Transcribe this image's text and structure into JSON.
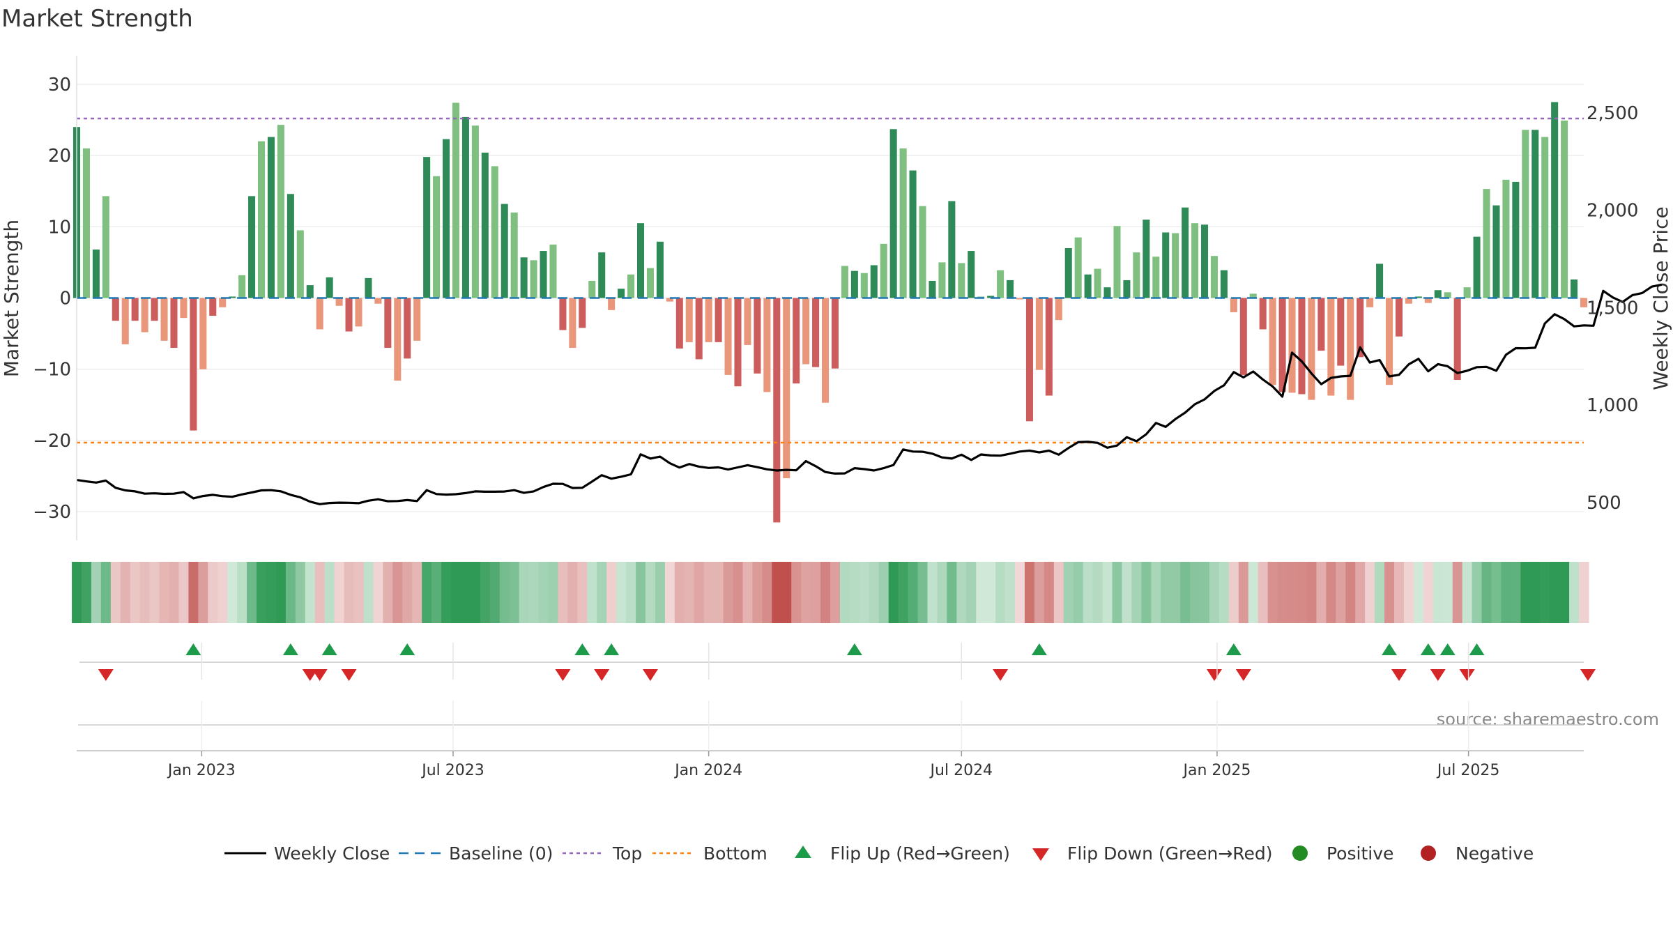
{
  "chart_data": {
    "type": "bar",
    "title": "Market Strength",
    "ylabel_left": "Market Strength",
    "ylabel_right": "Weekly Close Price",
    "source": "source: sharemaestro.com",
    "left_axis": {
      "range": [
        -34,
        34
      ],
      "ticks": [
        30,
        20,
        10,
        0,
        -10,
        -20,
        -30
      ],
      "tick_labels": [
        "30",
        "20",
        "10",
        "0",
        "−10",
        "−20",
        "−30"
      ]
    },
    "right_axis": {
      "range": [
        306,
        2793
      ],
      "ticks": [
        2500,
        2000,
        1500,
        1000,
        500
      ],
      "tick_labels": [
        "2,500",
        "2,000",
        "1,500",
        "1,000",
        "500"
      ]
    },
    "x_axis": {
      "start": "2022-10-03",
      "end": "2025-09-22",
      "ticks": [
        "2023-01-01",
        "2023-07-01",
        "2024-01-01",
        "2024-07-01",
        "2025-01-01",
        "2025-07-01"
      ],
      "tick_labels": [
        "Jan 2023",
        "Jul 2023",
        "Jan 2024",
        "Jul 2024",
        "Jan 2025",
        "Jul 2025"
      ]
    },
    "thresholds": {
      "top": 25.2,
      "bottom": -20.3,
      "baseline": 0
    },
    "week_start": "2022-10-03",
    "strength": [
      24.0,
      21.0,
      6.8,
      14.3,
      -3.2,
      -6.5,
      -3.2,
      -4.8,
      -3.2,
      -6.0,
      -7.0,
      -2.8,
      -18.6,
      -10.0,
      -2.5,
      -1.3,
      0.2,
      3.2,
      14.3,
      22.0,
      22.6,
      24.3,
      14.6,
      9.5,
      1.8,
      -4.4,
      2.9,
      -1.1,
      -4.7,
      -4.0,
      2.8,
      -0.8,
      -7.0,
      -11.6,
      -8.5,
      -6.0,
      19.8,
      17.1,
      22.3,
      27.4,
      25.4,
      24.2,
      20.4,
      18.5,
      13.2,
      12.0,
      5.7,
      5.3,
      6.6,
      7.5,
      -4.5,
      -7.0,
      -4.2,
      2.4,
      6.4,
      -1.7,
      1.3,
      3.3,
      10.5,
      4.2,
      7.9,
      -0.5,
      -7.1,
      -6.2,
      -8.6,
      -6.2,
      -6.2,
      -10.8,
      -12.4,
      -6.6,
      -10.6,
      -13.2,
      -31.5,
      -25.3,
      -12.0,
      -9.3,
      -9.7,
      -14.7,
      -9.9,
      4.5,
      3.8,
      3.5,
      4.6,
      7.6,
      23.7,
      21.0,
      17.9,
      12.9,
      2.4,
      5.0,
      13.6,
      4.9,
      6.6,
      0.2,
      0.3,
      3.9,
      2.5,
      -0.2,
      -17.3,
      -10.1,
      -13.7,
      -3.1,
      7.0,
      8.5,
      3.3,
      4.1,
      1.5,
      10.1,
      2.5,
      6.4,
      11.0,
      5.8,
      9.2,
      9.1,
      12.7,
      10.5,
      10.3,
      5.9,
      3.9,
      -2.0,
      -10.8,
      0.6,
      -4.4,
      -12.2,
      -13.2,
      -13.3,
      -13.5,
      -14.3,
      -7.4,
      -13.7,
      -9.5,
      -14.3,
      -8.3,
      -1.3,
      4.8,
      -12.2,
      -5.4,
      -0.8,
      0.2,
      -0.7,
      1.1,
      0.8,
      -11.5,
      1.5,
      8.6,
      15.3,
      13.0,
      16.6,
      16.3,
      23.6,
      23.6,
      22.6,
      27.5,
      24.9,
      2.6,
      -1.3
    ],
    "weekly_close": [
      615,
      608,
      602,
      612,
      575,
      562,
      557,
      545,
      547,
      544,
      545,
      553,
      521,
      533,
      539,
      532,
      529,
      541,
      551,
      562,
      563,
      557,
      539,
      526,
      504,
      491,
      497,
      499,
      498,
      496,
      509,
      516,
      506,
      507,
      512,
      507,
      563,
      543,
      540,
      542,
      548,
      557,
      555,
      555,
      556,
      563,
      549,
      557,
      579,
      596,
      595,
      574,
      575,
      607,
      640,
      622,
      632,
      644,
      747,
      725,
      735,
      701,
      679,
      697,
      684,
      677,
      680,
      669,
      680,
      691,
      681,
      670,
      664,
      667,
      665,
      712,
      686,
      656,
      648,
      649,
      676,
      671,
      664,
      676,
      692,
      772,
      761,
      760,
      750,
      731,
      725,
      745,
      718,
      746,
      741,
      740,
      750,
      761,
      766,
      757,
      766,
      745,
      779,
      809,
      811,
      806,
      781,
      792,
      835,
      814,
      850,
      908,
      888,
      928,
      961,
      1004,
      1029,
      1072,
      1101,
      1169,
      1142,
      1172,
      1131,
      1095,
      1043,
      1269,
      1224,
      1162,
      1107,
      1139,
      1147,
      1150,
      1296,
      1218,
      1231,
      1147,
      1155,
      1209,
      1237,
      1173,
      1210,
      1199,
      1164,
      1176,
      1194,
      1196,
      1176,
      1258,
      1292,
      1291,
      1294,
      1419,
      1466,
      1441,
      1404,
      1409,
      1407,
      1586,
      1552,
      1529,
      1564,
      1575,
      1608,
      1618
    ],
    "flip_up": [
      "2022-12-26",
      "2023-03-06",
      "2023-04-03",
      "2023-05-29",
      "2023-10-02",
      "2023-10-23",
      "2024-04-15",
      "2024-08-26",
      "2025-01-13",
      "2025-05-05",
      "2025-06-02",
      "2025-06-16",
      "2025-07-07"
    ],
    "flip_down": [
      "2022-10-24",
      "2023-03-20",
      "2023-03-27",
      "2023-04-17",
      "2023-09-18",
      "2023-10-16",
      "2023-11-20",
      "2024-07-29",
      "2024-12-30",
      "2025-01-20",
      "2025-05-12",
      "2025-06-09",
      "2025-06-30",
      "2025-09-29"
    ],
    "colors": {
      "bar_pos_strong": "#2e8b57",
      "bar_pos_weak": "#7fbf7f",
      "bar_neg_strong": "#cd5c5c",
      "bar_neg_weak": "#e9967a",
      "line": "#000000",
      "baseline": "#1f77b4",
      "top": "#9467bd",
      "bottom": "#ff7f0e",
      "flip_up": "#1e9a4b",
      "flip_down": "#d62728",
      "positive": "#228b22",
      "negative": "#b22222"
    },
    "legend": {
      "placement": "bottom",
      "items": [
        {
          "label": "Weekly Close",
          "kind": "line"
        },
        {
          "label": "Baseline (0)",
          "kind": "dash"
        },
        {
          "label": "Top",
          "kind": "dot-top"
        },
        {
          "label": "Bottom",
          "kind": "dot-bottom"
        },
        {
          "label": "Flip Up (Red→Green)",
          "kind": "tri-up"
        },
        {
          "label": "Flip Down (Green→Red)",
          "kind": "tri-down"
        },
        {
          "label": "Positive",
          "kind": "circle-pos"
        },
        {
          "label": "Negative",
          "kind": "circle-neg"
        }
      ]
    }
  }
}
